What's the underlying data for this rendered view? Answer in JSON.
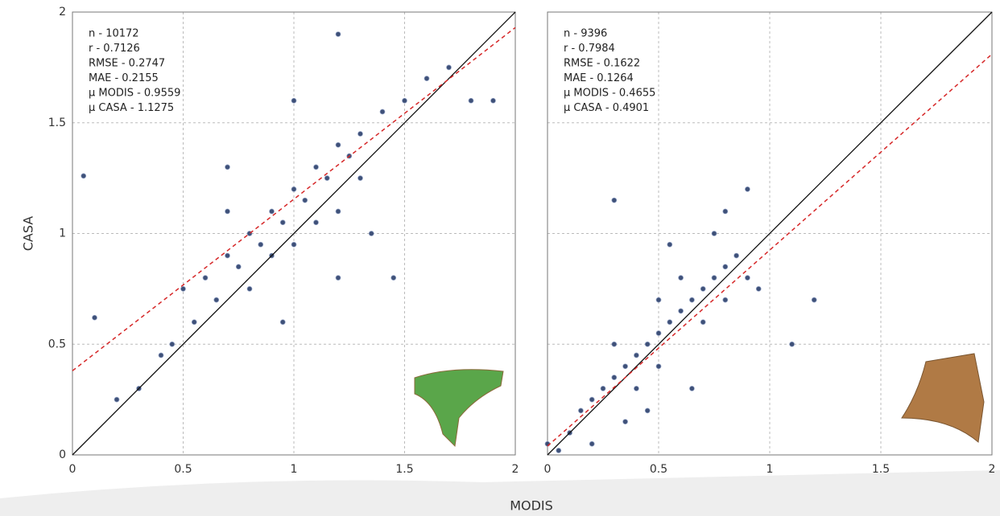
{
  "chart_data": [
    {
      "type": "scatter",
      "x_label": "MODIS",
      "y_label": "CASA",
      "xlim": [
        0,
        2
      ],
      "ylim": [
        0,
        2
      ],
      "xticks": [
        0,
        0.5,
        1,
        1.5,
        2
      ],
      "yticks": [
        0,
        0.5,
        1,
        1.5,
        2
      ],
      "grid": true,
      "annotations": [
        "n - 10172",
        "r - 0.7126",
        "RMSE - 0.2747",
        "MAE - 0.2155",
        "μ MODIS - 0.9559",
        "μ CASA - 1.1275"
      ],
      "series": [
        {
          "color": "#2b3f6b",
          "x": [
            0.6,
            0.7,
            0.75,
            0.8,
            0.85,
            0.9,
            0.95,
            1.0,
            1.05,
            1.1,
            1.15,
            1.2,
            1.25,
            1.3,
            0.65,
            0.7,
            0.8,
            0.9,
            1.0,
            1.1,
            1.2,
            1.3,
            1.4,
            1.5,
            0.55,
            0.5,
            0.45,
            0.4,
            0.3,
            1.6,
            1.7,
            1.8,
            1.9,
            0.2,
            0.1,
            0.05,
            1.0,
            1.35,
            0.7,
            1.2,
            0.95,
            1.45,
            1.2
          ],
          "y": [
            0.8,
            0.9,
            0.85,
            1.0,
            0.95,
            1.1,
            1.05,
            1.2,
            1.15,
            1.3,
            1.25,
            1.4,
            1.35,
            1.45,
            0.7,
            1.1,
            0.75,
            0.9,
            0.95,
            1.05,
            1.1,
            1.25,
            1.55,
            1.6,
            0.6,
            0.75,
            0.5,
            0.45,
            0.3,
            1.7,
            1.75,
            1.6,
            1.6,
            0.25,
            0.62,
            1.26,
            1.6,
            1.0,
            1.3,
            0.8,
            0.6,
            0.8,
            1.9
          ]
        }
      ],
      "reference_lines": [
        {
          "x": [
            0,
            2
          ],
          "y": [
            0,
            2
          ],
          "color": "#111111",
          "style": "solid"
        },
        {
          "x": [
            0,
            2
          ],
          "y": [
            0.38,
            1.93
          ],
          "color": "#d62728",
          "style": "dashed"
        }
      ]
    },
    {
      "type": "scatter",
      "xlim": [
        0,
        2
      ],
      "ylim": [
        0,
        2
      ],
      "xticks": [
        0,
        0.5,
        1,
        1.5,
        2
      ],
      "grid": true,
      "annotations": [
        "n - 9396",
        "r - 0.7984",
        "RMSE - 0.1622",
        "MAE - 0.1264",
        "μ MODIS - 0.4655",
        "μ CASA - 0.4901"
      ],
      "series": [
        {
          "color": "#2b3f6b",
          "x": [
            0.1,
            0.15,
            0.2,
            0.25,
            0.3,
            0.35,
            0.4,
            0.45,
            0.5,
            0.55,
            0.6,
            0.65,
            0.7,
            0.75,
            0.8,
            0.85,
            0.9,
            0.3,
            0.4,
            0.5,
            0.6,
            0.7,
            0.8,
            0.5,
            0.2,
            0.05,
            0.0,
            0.95,
            0.9,
            0.8,
            0.55,
            0.3,
            1.1,
            1.2,
            0.65,
            0.45,
            0.75,
            0.35
          ],
          "y": [
            0.1,
            0.2,
            0.25,
            0.3,
            0.35,
            0.4,
            0.45,
            0.5,
            0.55,
            0.6,
            0.65,
            0.7,
            0.75,
            0.8,
            0.85,
            0.9,
            0.8,
            0.5,
            0.3,
            0.4,
            0.8,
            0.6,
            0.7,
            0.7,
            0.05,
            0.02,
            0.05,
            0.75,
            1.2,
            1.1,
            0.95,
            1.15,
            0.5,
            0.7,
            0.3,
            0.2,
            1.0,
            0.15
          ]
        }
      ],
      "reference_lines": [
        {
          "x": [
            0,
            2
          ],
          "y": [
            0,
            2
          ],
          "color": "#111111",
          "style": "solid"
        },
        {
          "x": [
            0,
            2
          ],
          "y": [
            0.04,
            1.81
          ],
          "color": "#d62728",
          "style": "dashed"
        }
      ]
    }
  ]
}
